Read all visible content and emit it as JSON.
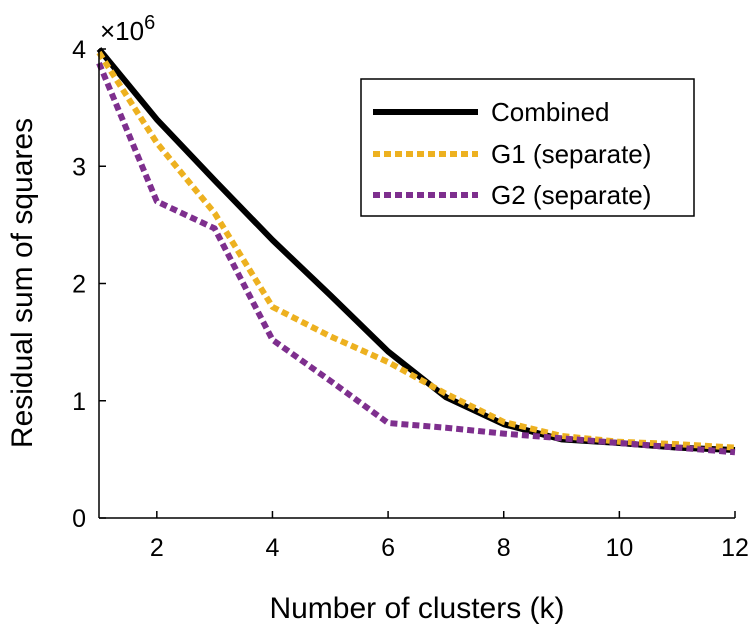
{
  "chart_data": {
    "type": "line",
    "title": "",
    "xlabel": "Number of clusters (k)",
    "ylabel": "Residual sum of squares",
    "y_multiplier_label": "×10",
    "y_multiplier_exponent": "6",
    "y_multiplier": 1000000,
    "xlim": [
      1,
      12
    ],
    "ylim": [
      0,
      4
    ],
    "x_ticks": [
      2,
      4,
      6,
      8,
      10,
      12
    ],
    "y_ticks": [
      0,
      1,
      2,
      3,
      4
    ],
    "grid": false,
    "legend_position": "top-right",
    "x": [
      1,
      2,
      3,
      4,
      5,
      6,
      7,
      8,
      9,
      10,
      11,
      12
    ],
    "series": [
      {
        "name": "Combined",
        "color": "#000000",
        "style": "solid",
        "values": [
          4.0,
          3.4,
          2.88,
          2.37,
          1.9,
          1.42,
          1.03,
          0.8,
          0.67,
          0.64,
          0.6,
          0.58
        ]
      },
      {
        "name": "G1 (separate)",
        "color": "#EDB120",
        "style": "dotted",
        "values": [
          3.97,
          3.2,
          2.6,
          1.8,
          1.55,
          1.33,
          1.06,
          0.82,
          0.7,
          0.65,
          0.63,
          0.6
        ]
      },
      {
        "name": "G2 (separate)",
        "color": "#7E2F8E",
        "style": "dotted",
        "values": [
          3.88,
          2.7,
          2.47,
          1.52,
          1.17,
          0.81,
          0.77,
          0.72,
          0.68,
          0.64,
          0.6,
          0.56
        ]
      }
    ]
  }
}
